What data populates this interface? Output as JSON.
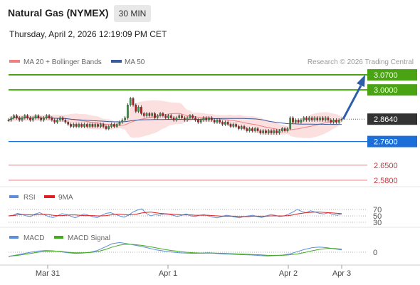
{
  "header": {
    "instrument": "Natural Gas (NYMEX)",
    "timeframe": "30 MIN",
    "timestamp": "Thursday, April 2, 2026 12:19:09 PM CET"
  },
  "legend": {
    "bollinger": "MA 20 + Bollinger Bands",
    "ma50": "MA 50",
    "credit": "Research © 2026 Trading Central"
  },
  "colors": {
    "bollinger": "#f08080",
    "ma50": "#3a5a9a",
    "resistance": "#4aa312",
    "pivot": "#1c6fd8",
    "support": "#f08c95",
    "last": "#333333",
    "arrow": "#2c5fa8",
    "rsi": "#5b8fdb",
    "rsi_ma": "#e02020",
    "macd": "#5b8fdb",
    "macd_signal": "#44aa22"
  },
  "chart_data": [
    {
      "type": "candlestick",
      "x_ticks": [
        "Mar 31",
        "Apr 1",
        "Apr 2",
        "Apr 3"
      ],
      "ylim": [
        2.55,
        3.1
      ],
      "levels": [
        {
          "label": "3.0700",
          "value": 3.07,
          "kind": "resistance"
        },
        {
          "label": "3.0000",
          "value": 3.0,
          "kind": "resistance"
        },
        {
          "label": "2.8640",
          "value": 2.864,
          "kind": "last"
        },
        {
          "label": "2.7600",
          "value": 2.76,
          "kind": "pivot"
        },
        {
          "label": "2.6500",
          "value": 2.65,
          "kind": "support"
        },
        {
          "label": "2.5800",
          "value": 2.58,
          "kind": "support"
        }
      ],
      "close": [
        2.86,
        2.87,
        2.88,
        2.87,
        2.86,
        2.87,
        2.88,
        2.87,
        2.86,
        2.87,
        2.88,
        2.87,
        2.86,
        2.87,
        2.88,
        2.87,
        2.86,
        2.85,
        2.86,
        2.87,
        2.86,
        2.85,
        2.84,
        2.83,
        2.84,
        2.83,
        2.84,
        2.83,
        2.84,
        2.83,
        2.84,
        2.83,
        2.84,
        2.83,
        2.84,
        2.83,
        2.82,
        2.83,
        2.84,
        2.83,
        2.84,
        2.85,
        2.86,
        2.87,
        2.93,
        2.96,
        2.93,
        2.9,
        2.92,
        2.89,
        2.88,
        2.89,
        2.88,
        2.89,
        2.87,
        2.88,
        2.89,
        2.88,
        2.87,
        2.88,
        2.87,
        2.86,
        2.87,
        2.88,
        2.87,
        2.86,
        2.87,
        2.88,
        2.87,
        2.86,
        2.85,
        2.86,
        2.87,
        2.86,
        2.87,
        2.86,
        2.85,
        2.86,
        2.85,
        2.84,
        2.85,
        2.84,
        2.83,
        2.84,
        2.83,
        2.82,
        2.83,
        2.82,
        2.81,
        2.82,
        2.81,
        2.82,
        2.81,
        2.8,
        2.81,
        2.8,
        2.81,
        2.8,
        2.81,
        2.8,
        2.81,
        2.82,
        2.81,
        2.82,
        2.87,
        2.85,
        2.86,
        2.85,
        2.86,
        2.87,
        2.86,
        2.87,
        2.86,
        2.87,
        2.86,
        2.87,
        2.86,
        2.87,
        2.86,
        2.85,
        2.86,
        2.85,
        2.86,
        2.864
      ],
      "forecast_path": [
        [
          2.864,
          3.07
        ]
      ]
    },
    {
      "type": "line",
      "name_series": [
        "RSI",
        "9MA"
      ],
      "levels": [
        70,
        50,
        30
      ],
      "rsi": [
        50,
        52,
        58,
        55,
        50,
        48,
        56,
        60,
        54,
        48,
        45,
        50,
        57,
        55,
        49,
        44,
        50,
        56,
        52,
        47,
        45,
        52,
        58,
        60,
        55,
        50,
        46,
        52,
        62,
        68,
        72,
        58,
        50,
        54,
        52,
        56,
        55,
        52,
        48,
        52,
        56,
        50,
        48,
        52,
        54,
        50,
        46,
        44,
        48,
        52,
        50,
        46,
        44,
        48,
        50,
        52,
        48,
        45,
        50,
        54,
        52,
        48,
        50,
        55,
        62,
        70,
        64,
        60,
        66,
        62,
        58,
        56,
        60,
        54,
        52,
        56
      ],
      "rsi_ma": [
        50,
        51,
        53,
        54,
        54,
        53,
        53,
        54,
        55,
        54,
        52,
        51,
        51,
        52,
        53,
        53,
        52,
        51,
        51,
        51,
        50,
        50,
        51,
        53,
        55,
        55,
        54,
        53,
        54,
        56,
        59,
        61,
        62,
        60,
        58,
        57,
        56,
        55,
        54,
        53,
        53,
        53,
        52,
        52,
        52,
        52,
        51,
        50,
        49,
        49,
        49,
        49,
        48,
        48,
        48,
        49,
        49,
        49,
        49,
        50,
        50,
        50,
        50,
        51,
        53,
        56,
        58,
        60,
        61,
        62,
        62,
        61,
        60,
        59,
        58,
        57
      ]
    },
    {
      "type": "line",
      "name_series": [
        "MACD",
        "MACD Signal"
      ],
      "levels": [
        0
      ],
      "macd": [
        -0.015,
        -0.01,
        -0.005,
        0.0,
        0.004,
        0.006,
        0.005,
        0.002,
        -0.002,
        -0.004,
        -0.003,
        0.0,
        0.006,
        0.018,
        0.03,
        0.034,
        0.03,
        0.025,
        0.02,
        0.014,
        0.008,
        0.004,
        0.001,
        -0.002,
        -0.003,
        -0.004,
        -0.003,
        -0.002,
        -0.004,
        -0.006,
        -0.007,
        -0.008,
        -0.009,
        -0.01,
        -0.012,
        -0.013,
        -0.012,
        -0.01,
        -0.006,
        0.002,
        0.01,
        0.016,
        0.018,
        0.016,
        0.012,
        0.008
      ],
      "signal": [
        -0.014,
        -0.012,
        -0.008,
        -0.004,
        0.0,
        0.003,
        0.004,
        0.003,
        0.0,
        -0.002,
        -0.002,
        -0.001,
        0.002,
        0.009,
        0.018,
        0.025,
        0.028,
        0.027,
        0.024,
        0.02,
        0.015,
        0.01,
        0.006,
        0.003,
        0.0,
        -0.002,
        -0.003,
        -0.003,
        -0.003,
        -0.004,
        -0.005,
        -0.006,
        -0.007,
        -0.008,
        -0.009,
        -0.011,
        -0.011,
        -0.011,
        -0.009,
        -0.006,
        -0.001,
        0.005,
        0.01,
        0.013,
        0.013,
        0.011
      ]
    }
  ],
  "rsi_panel": {
    "label_rsi": "RSI",
    "label_ma": "9MA",
    "ticks": [
      "70",
      "50",
      "30"
    ]
  },
  "macd_panel": {
    "label_macd": "MACD",
    "label_signal": "MACD Signal",
    "ticks": [
      "0"
    ]
  }
}
